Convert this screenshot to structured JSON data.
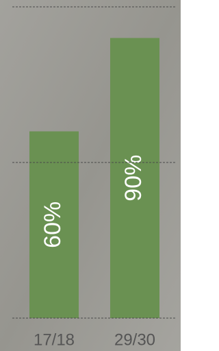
{
  "chart_data": {
    "type": "bar",
    "categories": [
      "17/18",
      "29/30"
    ],
    "values": [
      60,
      90
    ],
    "value_labels": [
      "60%",
      "90%"
    ],
    "color": "#6a9152",
    "ylim": [
      0,
      100
    ],
    "yticks": [
      0,
      50,
      100
    ],
    "grid": true
  }
}
